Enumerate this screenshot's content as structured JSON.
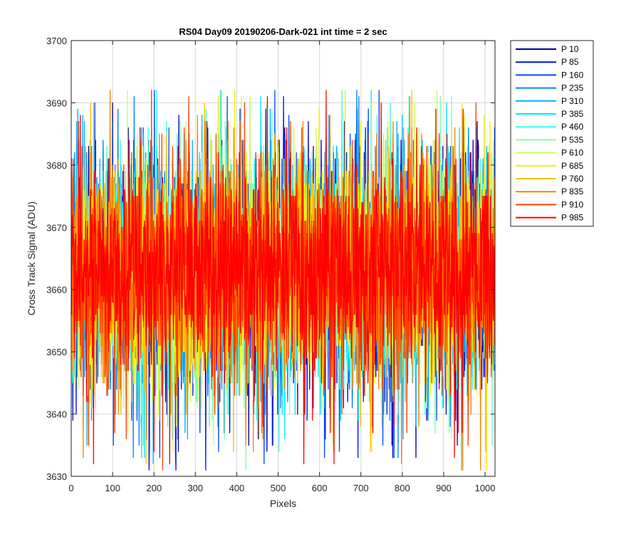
{
  "chart_data": {
    "type": "line",
    "title": "RS04 Day09 20190206-Dark-021 int time = 2 sec",
    "xlabel": "Pixels",
    "ylabel": "Cross Track Signal (ADU)",
    "xlim": [
      0,
      1024
    ],
    "ylim": [
      3630,
      3700
    ],
    "xticks": [
      0,
      100,
      200,
      300,
      400,
      500,
      600,
      700,
      800,
      900,
      1000
    ],
    "yticks": [
      3630,
      3640,
      3650,
      3660,
      3670,
      3680,
      3690,
      3700
    ],
    "grid": true,
    "legend_position": "outside-top-right",
    "noise_summary": {
      "mean": 3663,
      "typical_range": [
        3648,
        3680
      ],
      "min": 3631,
      "max": 3692
    },
    "series": [
      {
        "name": "P 10",
        "color": "#0000b3"
      },
      {
        "name": "P 85",
        "color": "#0014d9"
      },
      {
        "name": "P 160",
        "color": "#0047ff"
      },
      {
        "name": "P 235",
        "color": "#0080ff"
      },
      {
        "name": "P 310",
        "color": "#00b3ff"
      },
      {
        "name": "P 385",
        "color": "#00e6ff"
      },
      {
        "name": "P 460",
        "color": "#33ffe6"
      },
      {
        "name": "P 535",
        "color": "#80ffb3"
      },
      {
        "name": "P 610",
        "color": "#c8ff5a"
      },
      {
        "name": "P 685",
        "color": "#f2f200"
      },
      {
        "name": "P 760",
        "color": "#ffbf00"
      },
      {
        "name": "P 835",
        "color": "#ff8000"
      },
      {
        "name": "P 910",
        "color": "#ff4000"
      },
      {
        "name": "P 985",
        "color": "#ff0000"
      }
    ]
  }
}
